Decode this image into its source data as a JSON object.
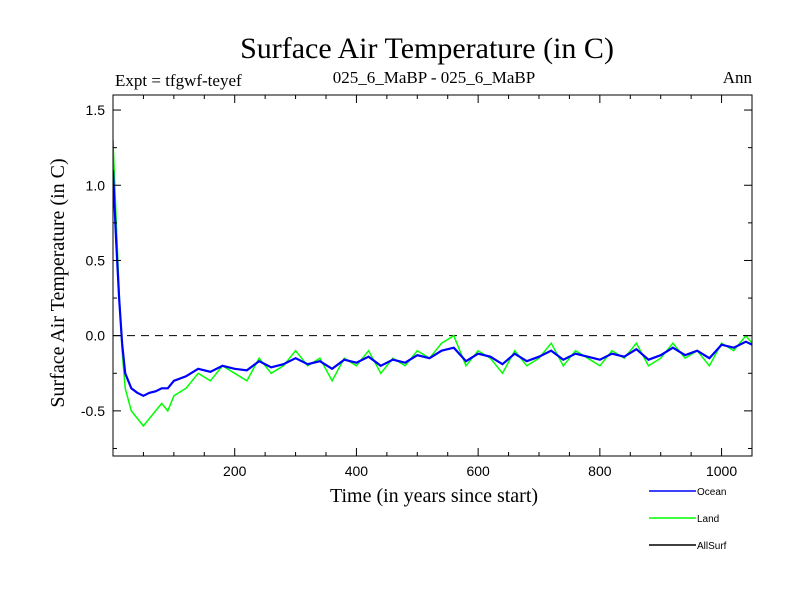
{
  "chart_data": {
    "type": "line",
    "title": "Surface Air Temperature (in C)",
    "subtitle_left": "Expt = tfgwf-teyef",
    "subtitle_center": "025_6_MaBP - 025_6_MaBP",
    "subtitle_right": "Ann",
    "xlabel": "Time (in years since start)",
    "ylabel": "Surface Air Temperature (in C)",
    "xlim": [
      0,
      1050
    ],
    "ylim": [
      -0.8,
      1.6
    ],
    "xticks": [
      200,
      400,
      600,
      800,
      1000
    ],
    "xtick_labels": [
      "200",
      "400",
      "600",
      "800",
      "1000"
    ],
    "yticks": [
      -0.5,
      0.0,
      0.5,
      1.0,
      1.5
    ],
    "ytick_labels": [
      "-0.5",
      "0.0",
      "0.5",
      "1.0",
      "1.5"
    ],
    "reference_line": 0.0,
    "series": [
      {
        "name": "Land",
        "color": "#00ff00",
        "x": [
          0,
          5,
          10,
          15,
          20,
          30,
          40,
          50,
          60,
          70,
          80,
          90,
          100,
          120,
          140,
          160,
          180,
          200,
          220,
          240,
          260,
          280,
          300,
          320,
          340,
          360,
          380,
          400,
          420,
          440,
          460,
          480,
          500,
          520,
          540,
          560,
          580,
          600,
          620,
          640,
          660,
          680,
          700,
          720,
          740,
          760,
          780,
          800,
          820,
          840,
          860,
          880,
          900,
          920,
          940,
          960,
          980,
          1000,
          1020,
          1040,
          1050
        ],
        "values": [
          1.3,
          0.8,
          0.3,
          -0.1,
          -0.35,
          -0.5,
          -0.55,
          -0.6,
          -0.55,
          -0.5,
          -0.45,
          -0.5,
          -0.4,
          -0.35,
          -0.25,
          -0.3,
          -0.2,
          -0.25,
          -0.3,
          -0.15,
          -0.25,
          -0.2,
          -0.1,
          -0.2,
          -0.15,
          -0.3,
          -0.15,
          -0.2,
          -0.1,
          -0.25,
          -0.15,
          -0.2,
          -0.1,
          -0.15,
          -0.05,
          0.0,
          -0.2,
          -0.1,
          -0.15,
          -0.25,
          -0.1,
          -0.2,
          -0.15,
          -0.05,
          -0.2,
          -0.1,
          -0.15,
          -0.2,
          -0.1,
          -0.15,
          -0.05,
          -0.2,
          -0.15,
          -0.05,
          -0.15,
          -0.1,
          -0.2,
          -0.05,
          -0.1,
          0.0,
          -0.05
        ]
      },
      {
        "name": "Ocean",
        "color": "#0000ff",
        "x": [
          0,
          5,
          10,
          15,
          20,
          30,
          40,
          50,
          60,
          70,
          80,
          90,
          100,
          120,
          140,
          160,
          180,
          200,
          220,
          240,
          260,
          280,
          300,
          320,
          340,
          360,
          380,
          400,
          420,
          440,
          460,
          480,
          500,
          520,
          540,
          560,
          580,
          600,
          620,
          640,
          660,
          680,
          700,
          720,
          740,
          760,
          780,
          800,
          820,
          840,
          860,
          880,
          900,
          920,
          940,
          960,
          980,
          1000,
          1020,
          1040,
          1050
        ],
        "values": [
          1.1,
          0.65,
          0.25,
          -0.05,
          -0.25,
          -0.35,
          -0.38,
          -0.4,
          -0.38,
          -0.37,
          -0.35,
          -0.35,
          -0.3,
          -0.27,
          -0.22,
          -0.24,
          -0.2,
          -0.22,
          -0.23,
          -0.17,
          -0.21,
          -0.19,
          -0.15,
          -0.19,
          -0.17,
          -0.22,
          -0.16,
          -0.18,
          -0.14,
          -0.2,
          -0.16,
          -0.18,
          -0.13,
          -0.15,
          -0.1,
          -0.08,
          -0.17,
          -0.12,
          -0.14,
          -0.19,
          -0.12,
          -0.17,
          -0.14,
          -0.1,
          -0.16,
          -0.12,
          -0.14,
          -0.16,
          -0.12,
          -0.14,
          -0.09,
          -0.16,
          -0.13,
          -0.08,
          -0.13,
          -0.1,
          -0.15,
          -0.06,
          -0.08,
          -0.04,
          -0.06
        ]
      },
      {
        "name": "AllSurf",
        "color": "#000000",
        "x": [],
        "values": []
      }
    ],
    "legend_entries": [
      "Ocean",
      "Land",
      "AllSurf"
    ],
    "legend_position": "bottom-right"
  }
}
